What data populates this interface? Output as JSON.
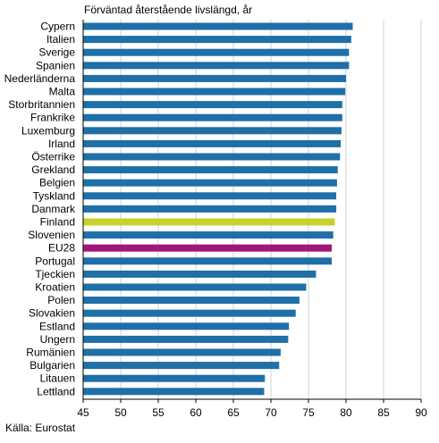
{
  "chart_data": {
    "type": "bar",
    "orientation": "horizontal",
    "title": "Förväntad återstående livslängd, år",
    "source": "Källa: Eurostat",
    "xlim": [
      45,
      90
    ],
    "xticks": [
      45,
      50,
      55,
      60,
      65,
      70,
      75,
      80,
      85,
      90
    ],
    "grid": true,
    "colors": {
      "default": "#1f6fa8",
      "Finland": "#c5d32c",
      "EU28": "#a3157a",
      "grid": "#d0d0d0",
      "axis": "#000000"
    },
    "categories": [
      "Cypern",
      "Italien",
      "Sverige",
      "Spanien",
      "Nederländerna",
      "Malta",
      "Storbritannien",
      "Frankrike",
      "Luxemburg",
      "Irland",
      "Österrike",
      "Grekland",
      "Belgien",
      "Tyskland",
      "Danmark",
      "Finland",
      "Slovenien",
      "EU28",
      "Portugal",
      "Tjeckien",
      "Kroatien",
      "Polen",
      "Slovakien",
      "Estland",
      "Ungern",
      "Rumänien",
      "Bulgarien",
      "Litauen",
      "Lettland"
    ],
    "values": [
      80.9,
      80.7,
      80.4,
      80.4,
      80.0,
      79.9,
      79.5,
      79.5,
      79.4,
      79.3,
      79.2,
      78.9,
      78.8,
      78.7,
      78.7,
      78.5,
      78.3,
      78.1,
      78.1,
      76.0,
      74.7,
      73.8,
      73.3,
      72.4,
      72.3,
      71.3,
      71.1,
      69.2,
      69.1
    ]
  }
}
